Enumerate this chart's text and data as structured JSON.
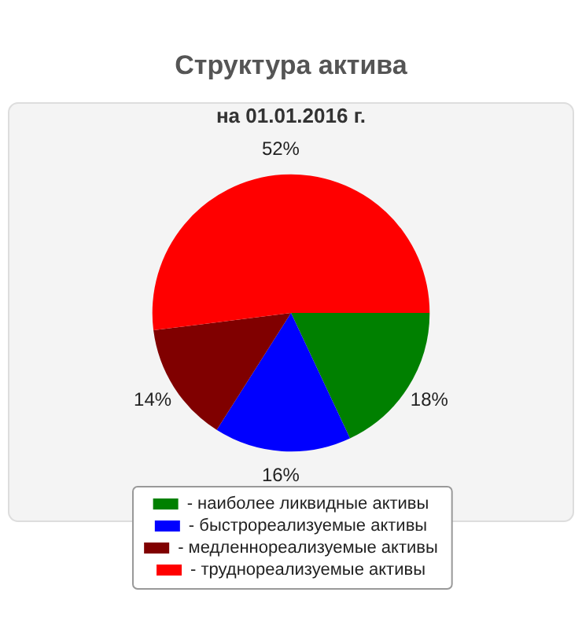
{
  "chart_data": {
    "type": "pie",
    "title": "Структура актива",
    "subtitle": "на 01.01.2016 г.",
    "categories": [
      "- наиболее ликвидные активы",
      "- быстрореализуемые активы",
      "- медленнореализуемые активы",
      "- труднореализуемые активы"
    ],
    "values": [
      18,
      16,
      14,
      52
    ],
    "colors": [
      "#008000",
      "#0000ff",
      "#800000",
      "#ff0000"
    ],
    "value_labels": [
      "18%",
      "16%",
      "14%",
      "52%"
    ],
    "legend": "bottom"
  }
}
